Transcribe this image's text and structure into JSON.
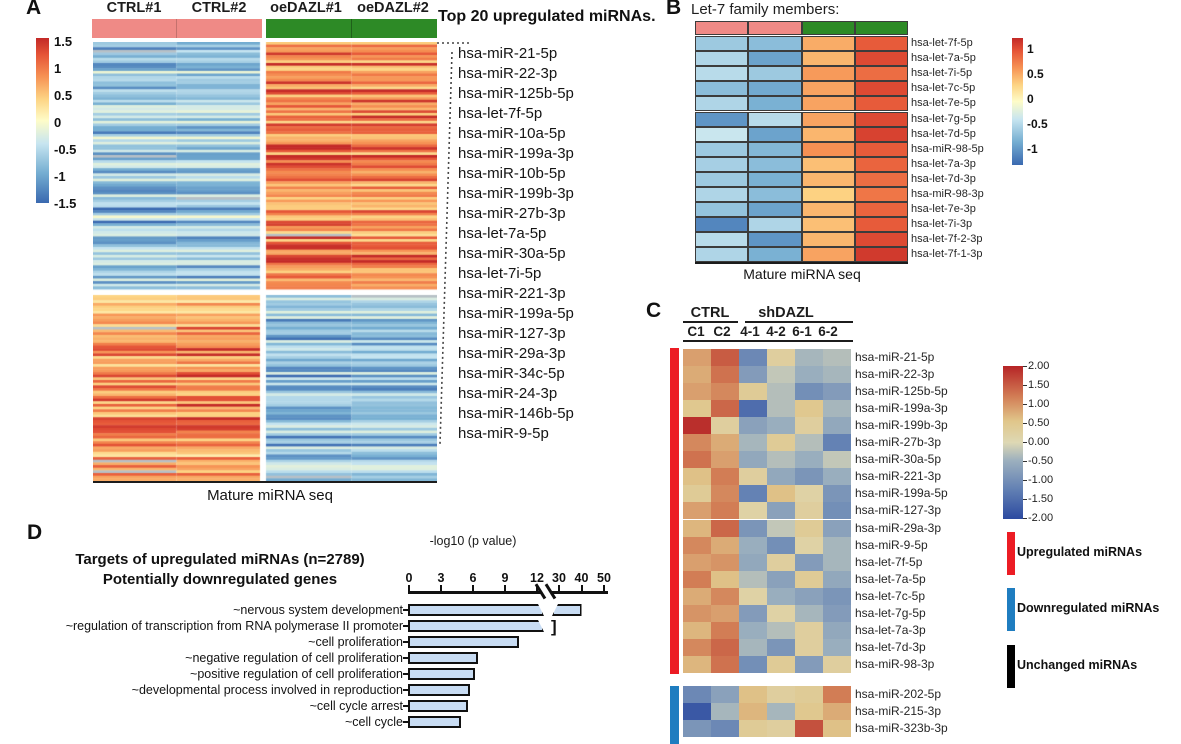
{
  "chart_data": [
    {
      "panel": "A",
      "type": "heatmap",
      "col_headers": [
        "CTRL#1",
        "CTRL#2",
        "oeDAZL#1",
        "oeDAZL#2"
      ],
      "group_annotation": [
        {
          "group": "CTRL",
          "color": "#ef8a86"
        },
        {
          "group": "oeDAZL",
          "color": "#2d8a26"
        }
      ],
      "xlabel": "Mature miRNA seq",
      "colorbar": {
        "ticks": [
          "1.5",
          "1",
          "0.5",
          "0",
          "-0.5",
          "-1",
          "-1.5"
        ],
        "max": 1.5,
        "min": -1.5
      },
      "row_blocks": [
        {
          "name": "upregulated in oeDAZL",
          "rows": 94,
          "ctrl_range": [
            -1.4,
            -0.2
          ],
          "oedazl_range": [
            0.35,
            1.5
          ]
        },
        {
          "name": "downregulated in oeDAZL",
          "rows": 70,
          "ctrl_range": [
            0.35,
            1.5
          ],
          "oedazl_range": [
            -1.4,
            -0.2
          ]
        }
      ],
      "callout": {
        "title": "Top 20 upregulated miRNAs.",
        "items": [
          "hsa-miR-21-5p",
          "hsa-miR-22-3p",
          "hsa-miR-125b-5p",
          "hsa-let-7f-5p",
          "hsa-miR-10a-5p",
          "hsa-miR-199a-3p",
          "hsa-miR-10b-5p",
          "hsa-miR-199b-3p",
          "hsa-miR-27b-3p",
          "hsa-let-7a-5p",
          "hsa-miR-30a-5p",
          "hsa-let-7i-5p",
          "hsa-miR-221-3p",
          "hsa-miR-199a-5p",
          "hsa-miR-127-3p",
          "hsa-miR-29a-3p",
          "hsa-miR-34c-5p",
          "hsa-miR-24-3p",
          "hsa-miR-146b-5p",
          "hsa-miR-9-5p"
        ]
      }
    },
    {
      "panel": "B",
      "type": "heatmap",
      "title": "Let-7 family members:",
      "col_annotation_colors": [
        "#ef8a86",
        "#ef8a86",
        "#2d8a26",
        "#2d8a26"
      ],
      "xlabel": "Mature miRNA seq",
      "colorbar": {
        "ticks": [
          "1",
          "0.5",
          "0",
          "-0.5",
          "-1"
        ],
        "max": 1.25,
        "min": -1.25
      },
      "rows": [
        "hsa-let-7f-5p",
        "hsa-let-7a-5p",
        "hsa-let-7i-5p",
        "hsa-let-7c-5p",
        "hsa-let-7e-5p",
        "hsa-let-7g-5p",
        "hsa-let-7d-5p",
        "hsa-miR-98-5p",
        "hsa-let-7a-3p",
        "hsa-let-7d-3p",
        "hsa-miR-98-3p",
        "hsa-let-7e-3p",
        "hsa-let-7i-3p",
        "hsa-let-7f-2-3p",
        "hsa-let-7f-1-3p"
      ],
      "matrix": [
        [
          -0.6,
          -0.7,
          0.55,
          1.0
        ],
        [
          -0.5,
          -0.9,
          0.5,
          1.1
        ],
        [
          -0.45,
          -0.6,
          0.65,
          0.9
        ],
        [
          -0.7,
          -0.85,
          0.6,
          1.1
        ],
        [
          -0.5,
          -0.8,
          0.6,
          1.0
        ],
        [
          -1.0,
          -0.45,
          0.6,
          1.1
        ],
        [
          -0.35,
          -0.9,
          0.5,
          1.15
        ],
        [
          -0.6,
          -0.75,
          0.7,
          1.0
        ],
        [
          -0.55,
          -0.7,
          0.45,
          0.95
        ],
        [
          -0.6,
          -0.8,
          0.5,
          0.9
        ],
        [
          -0.5,
          -0.7,
          0.35,
          0.85
        ],
        [
          -0.65,
          -0.9,
          0.5,
          0.95
        ],
        [
          -1.1,
          -0.5,
          0.45,
          1.0
        ],
        [
          -0.45,
          -1.0,
          0.5,
          1.1
        ],
        [
          -0.5,
          -0.8,
          0.6,
          1.2
        ]
      ]
    },
    {
      "panel": "C",
      "type": "heatmap",
      "group_headers": [
        "CTRL",
        "shDAZL"
      ],
      "col_headers": [
        "C1",
        "C2",
        "4-1",
        "4-2",
        "6-1",
        "6-2"
      ],
      "colorbar": {
        "ticks": [
          "2.00",
          "1.50",
          "1.00",
          "0.50",
          "0.00",
          "-0.50",
          "-1.00",
          "-1.50",
          "-2.00"
        ],
        "max": 2,
        "min": -2
      },
      "row_groups": [
        {
          "name": "Upregulated miRNAs",
          "sidebar_color": "#ec1c24",
          "rows": [
            "hsa-miR-21-5p",
            "hsa-miR-22-3p",
            "hsa-miR-125b-5p",
            "hsa-miR-199a-3p",
            "hsa-miR-199b-3p",
            "hsa-miR-27b-3p",
            "hsa-miR-30a-5p",
            "hsa-miR-221-3p",
            "hsa-miR-199a-5p",
            "hsa-miR-127-3p",
            "hsa-miR-29a-3p",
            "hsa-miR-9-5p",
            "hsa-let-7f-5p",
            "hsa-let-7a-5p",
            "hsa-let-7c-5p",
            "hsa-let-7g-5p",
            "hsa-let-7a-3p",
            "hsa-let-7d-3p",
            "hsa-miR-98-3p"
          ],
          "matrix": [
            [
              0.9,
              1.5,
              -1.1,
              0.3,
              -0.4,
              -0.3
            ],
            [
              0.8,
              1.3,
              -0.8,
              -0.2,
              -0.5,
              -0.4
            ],
            [
              0.9,
              1.1,
              0.4,
              -0.3,
              -1.0,
              -0.8
            ],
            [
              0.5,
              1.4,
              -1.5,
              -0.3,
              0.5,
              -0.4
            ],
            [
              1.9,
              0.3,
              -0.7,
              -0.5,
              0.3,
              -0.6
            ],
            [
              1.1,
              0.8,
              -0.4,
              0.4,
              -0.3,
              -1.2
            ],
            [
              1.3,
              0.9,
              -0.6,
              -0.3,
              -0.5,
              -0.2
            ],
            [
              0.6,
              1.2,
              0.3,
              -0.6,
              -0.9,
              -0.5
            ],
            [
              0.4,
              1.1,
              -1.2,
              0.6,
              0.2,
              -0.9
            ],
            [
              0.9,
              1.2,
              0.2,
              -0.7,
              0.3,
              -1.0
            ],
            [
              0.7,
              1.4,
              -0.9,
              -0.2,
              0.4,
              -0.7
            ],
            [
              1.1,
              0.8,
              -0.5,
              -1.0,
              0.2,
              -0.4
            ],
            [
              0.9,
              1.0,
              -0.6,
              0.3,
              -0.8,
              -0.4
            ],
            [
              1.2,
              0.6,
              -0.3,
              -0.7,
              0.4,
              -0.6
            ],
            [
              0.8,
              1.1,
              0.2,
              -0.5,
              -0.7,
              -0.9
            ],
            [
              1.0,
              0.9,
              -0.8,
              0.2,
              -0.4,
              -0.8
            ],
            [
              0.7,
              1.2,
              -0.5,
              -0.3,
              0.3,
              -0.6
            ],
            [
              1.1,
              1.4,
              -0.4,
              -0.9,
              0.3,
              -0.5
            ],
            [
              0.7,
              1.3,
              -1.0,
              0.4,
              -0.8,
              0.3
            ]
          ]
        },
        {
          "name": "Downregulated miRNAs",
          "sidebar_color": "#1f7dc0",
          "rows": [
            "hsa-miR-202-5p",
            "hsa-miR-215-3p",
            "hsa-miR-323b-3p"
          ],
          "matrix": [
            [
              -1.1,
              -0.7,
              0.6,
              0.3,
              0.4,
              1.2
            ],
            [
              -1.8,
              -0.4,
              0.7,
              -0.4,
              0.5,
              0.8
            ],
            [
              -0.9,
              -1.1,
              0.4,
              0.3,
              1.6,
              0.6
            ]
          ]
        }
      ],
      "legend": [
        {
          "label": "Upregulated miRNAs",
          "color": "#ec1c24"
        },
        {
          "label": "Downregulated miRNAs",
          "color": "#1f7dc0"
        },
        {
          "label": "Unchanged miRNAs",
          "color": "#000000"
        }
      ]
    },
    {
      "panel": "D",
      "type": "bar",
      "title_line1": "Targets of upregulated miRNAs (n=2789)",
      "title_line2": "Potentially downregulated genes",
      "axis_label": "-log10 (p value)",
      "x_ticks_main": [
        0,
        3,
        6,
        9,
        12
      ],
      "x_ticks_after_break": [
        30,
        40,
        50
      ],
      "axis_break_between": [
        12,
        30
      ],
      "categories": [
        "~nervous system development",
        "~regulation of transcription from RNA polymerase II promoter",
        "~cell proliferation",
        "~negative regulation of cell proliferation",
        "~positive regulation of cell proliferation",
        "~developmental process involved in reproduction",
        "~cell cycle arrest",
        "~cell cycle"
      ],
      "values": [
        40,
        30,
        10.4,
        6.6,
        6.3,
        5.8,
        5.6,
        5.0
      ],
      "bar_fill": "#c8dcf3",
      "bar_border": "#111111"
    }
  ]
}
